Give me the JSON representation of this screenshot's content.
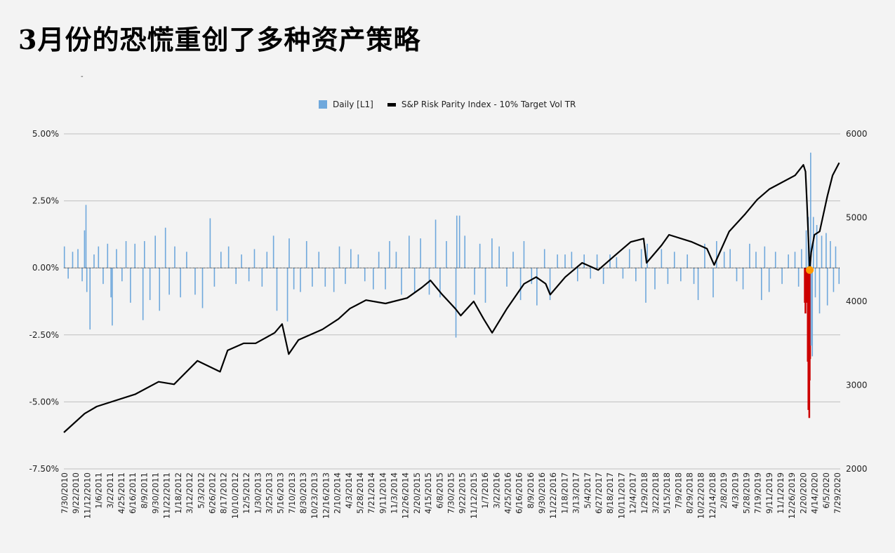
{
  "title": "3月份的恐慌重创了多种资产策略",
  "subtitle_mark": "-",
  "chart_data": {
    "type": "bar+line",
    "legend": {
      "placement": "top-center",
      "entries": [
        "Daily [L1]",
        "S&P Risk Parity Index - 10% Target Vol TR"
      ]
    },
    "colors": {
      "daily": "#6fa8dc",
      "daily_crash": "#cc0000",
      "index": "#000000",
      "marker": "#ff9900",
      "grid": "#bfbfbf"
    },
    "grid": true,
    "left_axis": {
      "range": [
        -7.5,
        5.0
      ],
      "ticks": [
        "5.00%",
        "2.50%",
        "0.00%",
        "-2.50%",
        "-5.00%",
        "-7.50%"
      ],
      "tick_values": [
        5,
        2.5,
        0,
        -2.5,
        -5,
        -7.5
      ]
    },
    "right_axis": {
      "range": [
        2000,
        6000
      ],
      "ticks": [
        "6000",
        "5000",
        "4000",
        "3000",
        "2000"
      ],
      "tick_values": [
        6000,
        5000,
        4000,
        3000,
        2000
      ]
    },
    "x_range": [
      "2010-07-30",
      "2020-08-10"
    ],
    "x_ticks": [
      "7/30/2010",
      "9/22/2010",
      "11/12/2010",
      "1/6/2011",
      "3/2/2011",
      "4/25/2011",
      "6/16/2011",
      "8/9/2011",
      "9/30/2011",
      "11/22/2011",
      "1/18/2012",
      "3/12/2012",
      "5/3/2012",
      "6/26/2012",
      "8/17/2012",
      "10/10/2012",
      "12/5/2012",
      "1/30/2013",
      "3/25/2013",
      "5/16/2013",
      "7/10/2013",
      "8/30/2013",
      "10/23/2013",
      "12/16/2013",
      "2/10/2014",
      "4/3/2014",
      "5/28/2014",
      "7/21/2014",
      "9/11/2014",
      "11/3/2014",
      "12/26/2014",
      "2/20/2015",
      "4/15/2015",
      "6/8/2015",
      "7/30/2015",
      "9/22/2015",
      "11/12/2015",
      "1/7/2016",
      "3/2/2016",
      "4/25/2016",
      "6/16/2016",
      "8/9/2016",
      "9/30/2016",
      "11/22/2016",
      "1/18/2017",
      "3/13/2017",
      "5/4/2017",
      "6/27/2017",
      "8/18/2017",
      "10/11/2017",
      "12/4/2017",
      "1/29/2018",
      "3/22/2018",
      "5/15/2018",
      "7/9/2018",
      "8/29/2018",
      "10/22/2018",
      "12/14/2018",
      "2/8/2019",
      "4/3/2019",
      "5/28/2019",
      "7/19/2019",
      "9/11/2019",
      "11/1/2019",
      "12/26/2019",
      "2/20/2020",
      "4/14/2020",
      "6/5/2020",
      "7/29/2020"
    ],
    "crash_period": [
      "2020-02-20",
      "2020-03-23"
    ],
    "marker": {
      "date": "2020-03-19",
      "value": 0
    },
    "daily_returns_pct": [
      [
        "2010-08-02",
        0.8
      ],
      [
        "2010-08-20",
        -0.4
      ],
      [
        "2010-09-10",
        0.6
      ],
      [
        "2010-10-05",
        0.7
      ],
      [
        "2010-10-25",
        -0.5
      ],
      [
        "2010-11-05",
        1.4
      ],
      [
        "2010-11-12",
        2.35
      ],
      [
        "2010-11-16",
        -0.9
      ],
      [
        "2010-12-01",
        -2.3
      ],
      [
        "2010-12-20",
        0.5
      ],
      [
        "2011-01-10",
        0.8
      ],
      [
        "2011-02-01",
        -0.6
      ],
      [
        "2011-02-22",
        0.9
      ],
      [
        "2011-03-10",
        -1.1
      ],
      [
        "2011-03-16",
        -2.15
      ],
      [
        "2011-04-05",
        0.7
      ],
      [
        "2011-05-01",
        -0.5
      ],
      [
        "2011-05-20",
        1.0
      ],
      [
        "2011-06-10",
        -1.3
      ],
      [
        "2011-07-01",
        0.9
      ],
      [
        "2011-08-08",
        -1.95
      ],
      [
        "2011-08-15",
        1.0
      ],
      [
        "2011-09-10",
        -1.2
      ],
      [
        "2011-10-05",
        1.2
      ],
      [
        "2011-10-25",
        -1.6
      ],
      [
        "2011-11-22",
        1.5
      ],
      [
        "2011-12-10",
        -1.0
      ],
      [
        "2012-01-05",
        0.8
      ],
      [
        "2012-02-01",
        -1.1
      ],
      [
        "2012-03-01",
        0.6
      ],
      [
        "2012-04-10",
        -1.0
      ],
      [
        "2012-05-15",
        -1.5
      ],
      [
        "2012-06-20",
        1.85
      ],
      [
        "2012-07-10",
        -0.7
      ],
      [
        "2012-08-10",
        0.6
      ],
      [
        "2012-09-15",
        0.8
      ],
      [
        "2012-10-20",
        -0.6
      ],
      [
        "2012-11-15",
        0.5
      ],
      [
        "2012-12-20",
        -0.5
      ],
      [
        "2013-01-15",
        0.7
      ],
      [
        "2013-02-20",
        -0.7
      ],
      [
        "2013-03-15",
        0.6
      ],
      [
        "2013-04-15",
        1.2
      ],
      [
        "2013-05-01",
        -1.6
      ],
      [
        "2013-06-20",
        -2.0
      ],
      [
        "2013-06-28",
        1.1
      ],
      [
        "2013-07-20",
        -0.8
      ],
      [
        "2013-08-20",
        -0.9
      ],
      [
        "2013-09-18",
        1.0
      ],
      [
        "2013-10-15",
        -0.7
      ],
      [
        "2013-11-15",
        0.6
      ],
      [
        "2013-12-15",
        -0.7
      ],
      [
        "2014-01-25",
        -0.9
      ],
      [
        "2014-02-20",
        0.8
      ],
      [
        "2014-03-20",
        -0.6
      ],
      [
        "2014-04-15",
        0.7
      ],
      [
        "2014-05-20",
        0.5
      ],
      [
        "2014-06-20",
        -0.5
      ],
      [
        "2014-07-30",
        -0.8
      ],
      [
        "2014-08-25",
        0.6
      ],
      [
        "2014-09-25",
        -0.8
      ],
      [
        "2014-10-15",
        1.0
      ],
      [
        "2014-11-15",
        0.6
      ],
      [
        "2014-12-10",
        -1.0
      ],
      [
        "2015-01-15",
        1.2
      ],
      [
        "2015-02-10",
        -0.9
      ],
      [
        "2015-03-10",
        1.1
      ],
      [
        "2015-04-20",
        -1.0
      ],
      [
        "2015-05-20",
        1.8
      ],
      [
        "2015-06-10",
        -1.1
      ],
      [
        "2015-07-10",
        1.0
      ],
      [
        "2015-08-24",
        -2.6
      ],
      [
        "2015-08-28",
        1.95
      ],
      [
        "2015-09-10",
        1.95
      ],
      [
        "2015-10-05",
        1.2
      ],
      [
        "2015-11-20",
        -1.0
      ],
      [
        "2015-12-15",
        0.9
      ],
      [
        "2016-01-10",
        -1.3
      ],
      [
        "2016-02-10",
        1.1
      ],
      [
        "2016-03-15",
        0.8
      ],
      [
        "2016-04-20",
        -0.7
      ],
      [
        "2016-05-20",
        0.6
      ],
      [
        "2016-06-24",
        -1.2
      ],
      [
        "2016-07-10",
        1.0
      ],
      [
        "2016-08-15",
        -0.6
      ],
      [
        "2016-09-09",
        -1.4
      ],
      [
        "2016-10-15",
        0.7
      ],
      [
        "2016-11-10",
        -1.2
      ],
      [
        "2016-12-15",
        0.5
      ],
      [
        "2017-01-20",
        0.5
      ],
      [
        "2017-02-20",
        0.6
      ],
      [
        "2017-03-20",
        -0.5
      ],
      [
        "2017-04-20",
        0.5
      ],
      [
        "2017-05-20",
        -0.4
      ],
      [
        "2017-06-20",
        0.5
      ],
      [
        "2017-07-20",
        -0.6
      ],
      [
        "2017-08-20",
        0.5
      ],
      [
        "2017-09-20",
        0.4
      ],
      [
        "2017-10-20",
        -0.4
      ],
      [
        "2017-11-20",
        0.7
      ],
      [
        "2017-12-20",
        -0.5
      ],
      [
        "2018-01-15",
        0.7
      ],
      [
        "2018-02-05",
        -1.3
      ],
      [
        "2018-02-12",
        0.9
      ],
      [
        "2018-03-20",
        -0.8
      ],
      [
        "2018-04-20",
        0.7
      ],
      [
        "2018-05-20",
        -0.6
      ],
      [
        "2018-06-20",
        0.6
      ],
      [
        "2018-07-20",
        -0.5
      ],
      [
        "2018-08-20",
        0.5
      ],
      [
        "2018-09-20",
        -0.6
      ],
      [
        "2018-10-10",
        -1.2
      ],
      [
        "2018-11-10",
        0.9
      ],
      [
        "2018-12-20",
        -1.1
      ],
      [
        "2019-01-05",
        1.0
      ],
      [
        "2019-02-10",
        0.6
      ],
      [
        "2019-03-10",
        0.7
      ],
      [
        "2019-04-10",
        -0.5
      ],
      [
        "2019-05-10",
        -0.8
      ],
      [
        "2019-06-10",
        0.9
      ],
      [
        "2019-07-10",
        0.6
      ],
      [
        "2019-08-05",
        -1.2
      ],
      [
        "2019-08-20",
        0.8
      ],
      [
        "2019-09-10",
        -0.9
      ],
      [
        "2019-10-10",
        0.6
      ],
      [
        "2019-11-10",
        -0.6
      ],
      [
        "2019-12-10",
        0.5
      ],
      [
        "2020-01-10",
        0.6
      ],
      [
        "2020-01-27",
        -0.7
      ],
      [
        "2020-02-10",
        0.7
      ],
      [
        "2020-02-24",
        -1.3
      ],
      [
        "2020-02-27",
        -1.7
      ],
      [
        "2020-03-03",
        1.4
      ],
      [
        "2020-03-05",
        -1.3
      ],
      [
        "2020-03-09",
        -3.5
      ],
      [
        "2020-03-12",
        -5.3
      ],
      [
        "2020-03-13",
        1.9
      ],
      [
        "2020-03-16",
        -5.6
      ],
      [
        "2020-03-18",
        -4.2
      ],
      [
        "2020-03-20",
        -3.4
      ],
      [
        "2020-03-24",
        4.3
      ],
      [
        "2020-03-26",
        -2.9
      ],
      [
        "2020-04-01",
        -3.3
      ],
      [
        "2020-04-06",
        1.9
      ],
      [
        "2020-04-15",
        -1.1
      ],
      [
        "2020-04-22",
        1.6
      ],
      [
        "2020-05-05",
        -1.7
      ],
      [
        "2020-05-15",
        1.2
      ],
      [
        "2020-06-05",
        1.3
      ],
      [
        "2020-06-11",
        -1.4
      ],
      [
        "2020-06-25",
        1.0
      ],
      [
        "2020-07-10",
        -0.9
      ],
      [
        "2020-07-20",
        0.8
      ],
      [
        "2020-08-05",
        -0.6
      ]
    ],
    "index_values": [
      [
        "2010-07-30",
        2435
      ],
      [
        "2010-11-05",
        2660
      ],
      [
        "2011-01-01",
        2745
      ],
      [
        "2011-07-01",
        2890
      ],
      [
        "2011-10-20",
        3040
      ],
      [
        "2012-01-01",
        3010
      ],
      [
        "2012-04-20",
        3290
      ],
      [
        "2012-08-05",
        3160
      ],
      [
        "2012-09-10",
        3415
      ],
      [
        "2012-11-25",
        3500
      ],
      [
        "2013-01-20",
        3500
      ],
      [
        "2013-04-20",
        3625
      ],
      [
        "2013-05-25",
        3730
      ],
      [
        "2013-06-25",
        3370
      ],
      [
        "2013-08-10",
        3540
      ],
      [
        "2013-12-01",
        3665
      ],
      [
        "2014-02-15",
        3790
      ],
      [
        "2014-04-10",
        3915
      ],
      [
        "2014-06-25",
        4015
      ],
      [
        "2014-09-25",
        3975
      ],
      [
        "2015-01-05",
        4040
      ],
      [
        "2015-03-15",
        4165
      ],
      [
        "2015-04-25",
        4250
      ],
      [
        "2015-06-20",
        4080
      ],
      [
        "2015-08-20",
        3915
      ],
      [
        "2015-09-15",
        3830
      ],
      [
        "2015-11-15",
        4000
      ],
      [
        "2016-01-01",
        3790
      ],
      [
        "2016-02-10",
        3625
      ],
      [
        "2016-04-20",
        3915
      ],
      [
        "2016-07-10",
        4210
      ],
      [
        "2016-09-05",
        4290
      ],
      [
        "2016-10-20",
        4210
      ],
      [
        "2016-11-10",
        4080
      ],
      [
        "2017-01-20",
        4290
      ],
      [
        "2017-04-10",
        4460
      ],
      [
        "2017-06-25",
        4375
      ],
      [
        "2017-09-10",
        4545
      ],
      [
        "2017-11-25",
        4710
      ],
      [
        "2018-01-25",
        4750
      ],
      [
        "2018-02-08",
        4460
      ],
      [
        "2018-04-20",
        4670
      ],
      [
        "2018-05-25",
        4795
      ],
      [
        "2018-09-10",
        4710
      ],
      [
        "2018-11-20",
        4630
      ],
      [
        "2018-12-24",
        4435
      ],
      [
        "2019-03-05",
        4835
      ],
      [
        "2019-05-20",
        5045
      ],
      [
        "2019-07-15",
        5215
      ],
      [
        "2019-09-10",
        5340
      ],
      [
        "2020-01-10",
        5505
      ],
      [
        "2020-02-18",
        5630
      ],
      [
        "2020-02-28",
        5550
      ],
      [
        "2020-03-06",
        5170
      ],
      [
        "2020-03-19",
        4375
      ],
      [
        "2020-03-26",
        4585
      ],
      [
        "2020-04-10",
        4795
      ],
      [
        "2020-05-05",
        4835
      ],
      [
        "2020-06-10",
        5255
      ],
      [
        "2020-07-05",
        5505
      ],
      [
        "2020-08-05",
        5655
      ]
    ]
  }
}
